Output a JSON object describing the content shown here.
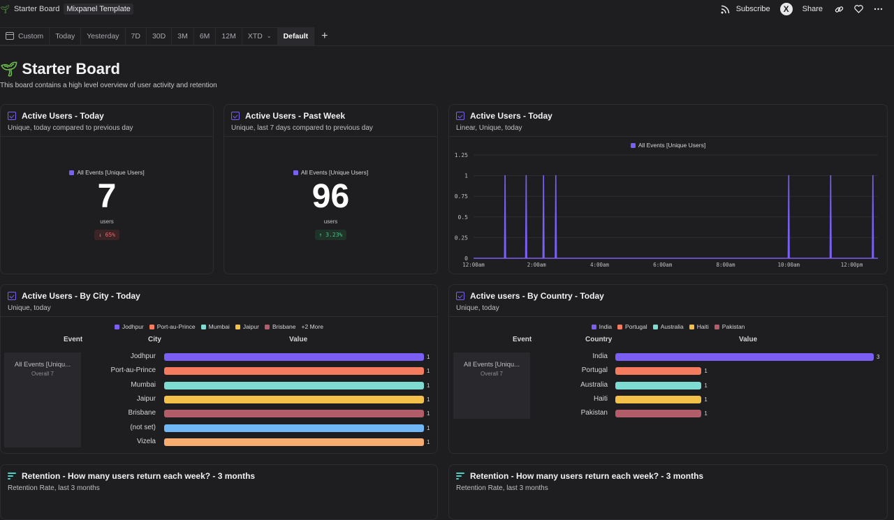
{
  "topbar": {
    "board_name": "Starter Board",
    "template_tag": "Mixpanel Template",
    "subscribe_label": "Subscribe",
    "avatar_letter": "X",
    "share_label": "Share"
  },
  "range_bar": {
    "items": [
      "Custom",
      "Today",
      "Yesterday",
      "7D",
      "30D",
      "3M",
      "6M",
      "12M",
      "XTD",
      "Default"
    ],
    "active": "Default"
  },
  "board": {
    "title": "Starter Board",
    "description": "This board contains a high level overview of user activity and retention"
  },
  "cards": {
    "active_today": {
      "title": "Active Users - Today",
      "subtitle": "Unique, today compared to previous day",
      "legend": "All Events [Unique Users]",
      "value": "7",
      "unit": "users",
      "change": "↓ 65%",
      "change_color": "#e36b6b"
    },
    "active_week": {
      "title": "Active Users - Past Week",
      "subtitle": "Unique, last 7 days compared to previous day",
      "legend": "All Events [Unique Users]",
      "value": "96",
      "unit": "users",
      "change": "↑ 3.23%",
      "change_color": "#47c487"
    },
    "active_today_line": {
      "title": "Active Users - Today",
      "subtitle": "Linear, Unique, today",
      "legend": "All Events [Unique Users]"
    },
    "by_city": {
      "title": "Active Users - By City - Today",
      "subtitle": "Unique, today",
      "legend": [
        {
          "name": "Jodhpur",
          "color": "#7b5ff2"
        },
        {
          "name": "Port-au-Prince",
          "color": "#f47b5e"
        },
        {
          "name": "Mumbai",
          "color": "#7ddbd2"
        },
        {
          "name": "Jaipur",
          "color": "#f3c04a"
        },
        {
          "name": "Brisbane",
          "color": "#b35c6a"
        }
      ],
      "legend_more": "+2 More",
      "col_event": "Event",
      "col_city": "City",
      "col_value": "Value",
      "event_name": "All Events [Uniqu...",
      "event_overall": "Overall  7",
      "rows": [
        {
          "label": "Jodhpur",
          "value": "1",
          "color": "#7b5ff2"
        },
        {
          "label": "Port-au-Prince",
          "value": "1",
          "color": "#f47b5e"
        },
        {
          "label": "Mumbai",
          "value": "1",
          "color": "#7ddbd2"
        },
        {
          "label": "Jaipur",
          "value": "1",
          "color": "#f3c04a"
        },
        {
          "label": "Brisbane",
          "value": "1",
          "color": "#b35c6a"
        },
        {
          "label": "(not set)",
          "value": "1",
          "color": "#6fb8f5"
        },
        {
          "label": "Vizela",
          "value": "1",
          "color": "#f7ad72"
        }
      ]
    },
    "by_country": {
      "title": "Active users - By Country - Today",
      "subtitle": "Unique, today",
      "legend": [
        {
          "name": "India",
          "color": "#7b5ff2"
        },
        {
          "name": "Portugal",
          "color": "#f47b5e"
        },
        {
          "name": "Australia",
          "color": "#7ddbd2"
        },
        {
          "name": "Haiti",
          "color": "#f3c04a"
        },
        {
          "name": "Pakistan",
          "color": "#b35c6a"
        }
      ],
      "col_event": "Event",
      "col_country": "Country",
      "col_value": "Value",
      "event_name": "All Events [Uniqu...",
      "event_overall": "Overall  7",
      "rows": [
        {
          "label": "India",
          "value": "3",
          "color": "#7b5ff2"
        },
        {
          "label": "Portugal",
          "value": "1",
          "color": "#f47b5e"
        },
        {
          "label": "Australia",
          "value": "1",
          "color": "#7ddbd2"
        },
        {
          "label": "Haiti",
          "value": "1",
          "color": "#f3c04a"
        },
        {
          "label": "Pakistan",
          "value": "1",
          "color": "#b35c6a"
        }
      ]
    },
    "retention_left": {
      "title": "Retention - How many users return each week? - 3 months",
      "subtitle": "Retention Rate, last 3 months"
    },
    "retention_right": {
      "title": "Retention - How many users return each week? - 3 months",
      "subtitle": "Retention Rate, last 3 months"
    }
  },
  "chart_data": {
    "type": "line",
    "series_name": "All Events [Unique Users]",
    "series_color": "#7b5ff2",
    "ylim": [
      0,
      1.25
    ],
    "y_ticks": [
      "0",
      "0.25",
      "0.5",
      "0.75",
      "1",
      "1.25"
    ],
    "x_ticks": [
      "12:00am",
      "2:00am",
      "4:00am",
      "6:00am",
      "8:00am",
      "10:00am",
      "12:00pm"
    ],
    "spikes_hours": [
      1.0,
      1.67,
      2.22,
      2.61,
      10.0,
      11.33,
      12.67
    ],
    "spike_value": 1,
    "x_range_hours": [
      0,
      12.83
    ]
  }
}
